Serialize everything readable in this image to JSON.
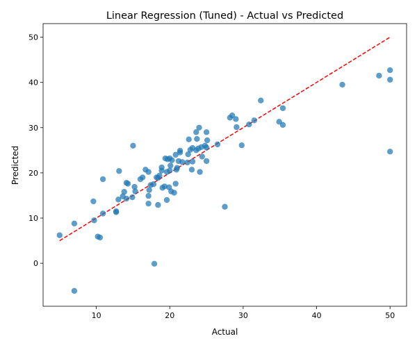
{
  "chart_data": {
    "type": "scatter",
    "title": "Linear Regression (Tuned) - Actual vs Predicted",
    "xlabel": "Actual",
    "ylabel": "Predicted",
    "xlim": [
      2.75,
      52.25
    ],
    "ylim": [
      -9.5,
      53.0
    ],
    "xticks": [
      10,
      20,
      30,
      40,
      50
    ],
    "yticks": [
      0,
      10,
      20,
      30,
      40,
      50
    ],
    "grid": false,
    "colors": {
      "points": "#1f77b4",
      "reference_line": "#ff0000",
      "axes": "#000000"
    },
    "reference_line": {
      "style": "dashed",
      "from": [
        5,
        5
      ],
      "to": [
        50,
        50
      ]
    },
    "points": [
      [
        5.0,
        6.2
      ],
      [
        7.0,
        8.8
      ],
      [
        7.0,
        -6.1
      ],
      [
        9.6,
        13.7
      ],
      [
        9.7,
        9.5
      ],
      [
        10.2,
        5.9
      ],
      [
        10.5,
        5.7
      ],
      [
        10.9,
        11.0
      ],
      [
        10.9,
        18.6
      ],
      [
        12.7,
        11.5
      ],
      [
        12.7,
        11.3
      ],
      [
        13.0,
        14.1
      ],
      [
        13.1,
        20.4
      ],
      [
        13.6,
        14.8
      ],
      [
        13.8,
        15.8
      ],
      [
        14.1,
        14.3
      ],
      [
        14.1,
        17.8
      ],
      [
        14.3,
        17.6
      ],
      [
        14.9,
        14.6
      ],
      [
        15.0,
        26.0
      ],
      [
        15.2,
        16.9
      ],
      [
        15.3,
        15.9
      ],
      [
        16.0,
        18.6
      ],
      [
        16.3,
        19.0
      ],
      [
        16.7,
        20.7
      ],
      [
        17.1,
        20.2
      ],
      [
        17.1,
        14.9
      ],
      [
        17.1,
        13.2
      ],
      [
        17.2,
        16.2
      ],
      [
        17.4,
        17.3
      ],
      [
        17.8,
        17.5
      ],
      [
        17.9,
        -0.1
      ],
      [
        18.2,
        19.0
      ],
      [
        18.4,
        18.9
      ],
      [
        18.4,
        12.9
      ],
      [
        18.6,
        19.4
      ],
      [
        18.9,
        20.5
      ],
      [
        18.9,
        21.2
      ],
      [
        19.0,
        16.7
      ],
      [
        19.3,
        17.0
      ],
      [
        19.4,
        23.2
      ],
      [
        19.6,
        20.2
      ],
      [
        19.6,
        14.0
      ],
      [
        19.7,
        23.0
      ],
      [
        19.9,
        16.8
      ],
      [
        20.0,
        20.5
      ],
      [
        20.0,
        23.2
      ],
      [
        20.1,
        21.6
      ],
      [
        20.2,
        15.9
      ],
      [
        20.3,
        22.8
      ],
      [
        20.6,
        15.6
      ],
      [
        20.8,
        17.6
      ],
      [
        20.8,
        24.0
      ],
      [
        20.9,
        20.7
      ],
      [
        21.0,
        21.1
      ],
      [
        21.2,
        22.6
      ],
      [
        21.4,
        24.5
      ],
      [
        21.4,
        24.9
      ],
      [
        21.7,
        22.4
      ],
      [
        22.4,
        22.3
      ],
      [
        22.5,
        24.1
      ],
      [
        22.6,
        27.4
      ],
      [
        22.8,
        25.1
      ],
      [
        23.0,
        20.7
      ],
      [
        23.1,
        22.5
      ],
      [
        23.1,
        25.5
      ],
      [
        23.6,
        25.0
      ],
      [
        23.6,
        29.0
      ],
      [
        23.7,
        27.5
      ],
      [
        23.9,
        25.4
      ],
      [
        24.0,
        30.0
      ],
      [
        24.1,
        20.2
      ],
      [
        24.3,
        25.7
      ],
      [
        24.4,
        23.6
      ],
      [
        24.8,
        26.0
      ],
      [
        25.0,
        29.0
      ],
      [
        25.0,
        25.6
      ],
      [
        25.0,
        22.6
      ],
      [
        25.1,
        27.2
      ],
      [
        26.5,
        26.3
      ],
      [
        27.5,
        12.5
      ],
      [
        28.2,
        32.2
      ],
      [
        28.5,
        32.7
      ],
      [
        29.0,
        31.9
      ],
      [
        29.1,
        30.1
      ],
      [
        29.8,
        26.1
      ],
      [
        30.8,
        30.7
      ],
      [
        31.5,
        31.6
      ],
      [
        32.4,
        36.0
      ],
      [
        34.9,
        31.3
      ],
      [
        35.4,
        34.3
      ],
      [
        35.4,
        30.6
      ],
      [
        43.5,
        39.5
      ],
      [
        48.5,
        41.5
      ],
      [
        50.0,
        42.7
      ],
      [
        50.0,
        40.6
      ],
      [
        50.0,
        24.7
      ]
    ]
  }
}
